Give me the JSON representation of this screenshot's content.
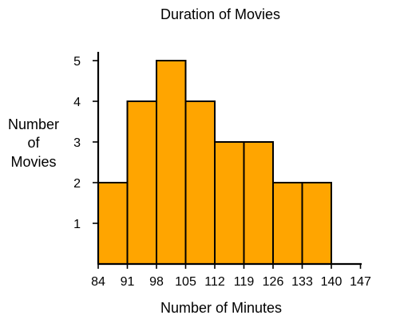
{
  "chart_data": {
    "type": "bar",
    "title": "Duration of Movies",
    "xlabel": "Number of Minutes",
    "ylabel": [
      "Number",
      "of",
      "Movies"
    ],
    "bin_edges": [
      84,
      91,
      98,
      105,
      112,
      119,
      126,
      133,
      140,
      147
    ],
    "x_ticks": [
      "84",
      "91",
      "98",
      "105",
      "112",
      "119",
      "126",
      "133",
      "140",
      "147"
    ],
    "bins": [
      {
        "start": 84,
        "end": 91,
        "count": 2
      },
      {
        "start": 91,
        "end": 98,
        "count": 4
      },
      {
        "start": 98,
        "end": 105,
        "count": 5
      },
      {
        "start": 105,
        "end": 112,
        "count": 4
      },
      {
        "start": 112,
        "end": 119,
        "count": 3
      },
      {
        "start": 119,
        "end": 126,
        "count": 3
      },
      {
        "start": 126,
        "end": 133,
        "count": 2
      },
      {
        "start": 133,
        "end": 140,
        "count": 2
      }
    ],
    "y_ticks": [
      1,
      2,
      3,
      4,
      5
    ],
    "ylim": [
      0,
      5
    ],
    "grid": false,
    "bar_color": "#FFA500",
    "bar_edge_color": "#000000"
  }
}
